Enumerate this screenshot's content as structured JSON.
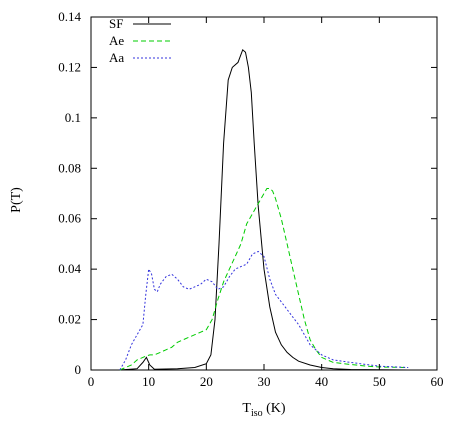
{
  "chart_data": {
    "type": "line",
    "xlabel_main": "T",
    "xlabel_sub": "iso",
    "xlabel_unit": " (K)",
    "ylabel": "P(T)",
    "xlim": [
      0,
      60
    ],
    "ylim": [
      0,
      0.14
    ],
    "xticks": [
      0,
      10,
      20,
      30,
      40,
      50,
      60
    ],
    "yticks": [
      0,
      0.02,
      0.04,
      0.06,
      0.08,
      0.1,
      0.12,
      0.14
    ],
    "ytick_labels": [
      "0",
      "0.02",
      "0.04",
      "0.06",
      "0.08",
      "0.1",
      "0.12",
      "0.14"
    ],
    "grid": false,
    "legend_position": "top-left",
    "series": [
      {
        "name": "SF",
        "color": "#000000",
        "dash": "none",
        "x": [
          5,
          8,
          9,
          9.6,
          10.2,
          11,
          15,
          18,
          20,
          20.8,
          21.5,
          22.2,
          23,
          23.8,
          24.5,
          25.5,
          26.3,
          26.8,
          27.3,
          27.8,
          28.3,
          29,
          30,
          31,
          32,
          33,
          34,
          35,
          36,
          38,
          40,
          42,
          45,
          50,
          55
        ],
        "y": [
          0,
          0.0005,
          0.003,
          0.005,
          0.002,
          0.0003,
          0.0005,
          0.001,
          0.0025,
          0.006,
          0.02,
          0.05,
          0.09,
          0.115,
          0.12,
          0.122,
          0.127,
          0.126,
          0.12,
          0.11,
          0.09,
          0.065,
          0.04,
          0.025,
          0.015,
          0.01,
          0.007,
          0.005,
          0.0035,
          0.002,
          0.001,
          0.0005,
          0.0002,
          0.0001,
          0
        ]
      },
      {
        "name": "Ae",
        "color": "#00cc00",
        "dash": "5,3",
        "x": [
          5,
          7,
          8,
          9,
          9.5,
          10.2,
          11,
          12,
          13,
          14,
          15,
          16,
          17,
          18,
          19,
          20,
          21,
          22,
          23,
          24,
          25,
          26,
          27,
          28,
          29,
          30,
          30.5,
          31,
          31.5,
          32,
          33,
          34,
          35,
          36,
          37,
          38,
          39,
          40,
          42,
          45,
          48,
          50,
          55
        ],
        "y": [
          0,
          0.002,
          0.004,
          0.005,
          0.0055,
          0.006,
          0.006,
          0.007,
          0.008,
          0.009,
          0.011,
          0.012,
          0.013,
          0.014,
          0.015,
          0.016,
          0.02,
          0.028,
          0.035,
          0.04,
          0.045,
          0.05,
          0.058,
          0.062,
          0.066,
          0.07,
          0.072,
          0.072,
          0.071,
          0.068,
          0.06,
          0.05,
          0.04,
          0.03,
          0.02,
          0.012,
          0.008,
          0.005,
          0.003,
          0.0022,
          0.0015,
          0.0012,
          0.001
        ]
      },
      {
        "name": "Aa",
        "color": "#3333dd",
        "dash": "2,2",
        "x": [
          5,
          6,
          7,
          8,
          9,
          9.5,
          10,
          10.5,
          11,
          11.5,
          12,
          13,
          14,
          15,
          16,
          17,
          18,
          19,
          20,
          21,
          22,
          23,
          24,
          25,
          26,
          27,
          28,
          29,
          30,
          31,
          32,
          33,
          34,
          35,
          36,
          37,
          38,
          40,
          42,
          45,
          50,
          55
        ],
        "y": [
          0,
          0.004,
          0.01,
          0.014,
          0.018,
          0.03,
          0.04,
          0.038,
          0.032,
          0.031,
          0.034,
          0.037,
          0.038,
          0.036,
          0.033,
          0.032,
          0.033,
          0.034,
          0.036,
          0.035,
          0.032,
          0.033,
          0.037,
          0.04,
          0.041,
          0.042,
          0.046,
          0.047,
          0.045,
          0.036,
          0.03,
          0.027,
          0.024,
          0.021,
          0.018,
          0.014,
          0.01,
          0.006,
          0.004,
          0.003,
          0.0015,
          0.001
        ]
      }
    ]
  }
}
